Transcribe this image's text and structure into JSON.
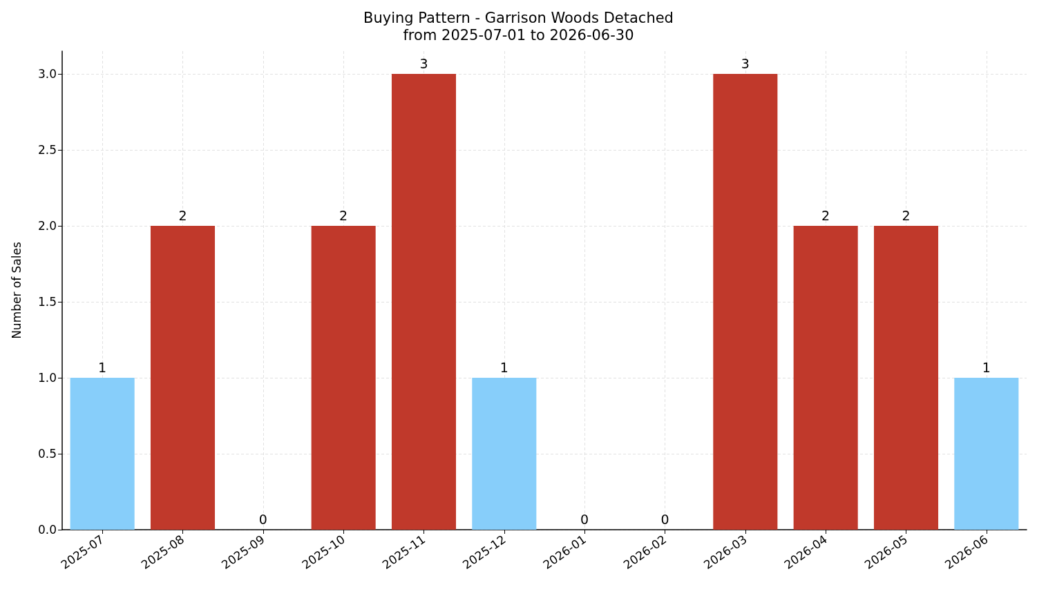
{
  "chart_data": {
    "type": "bar",
    "title": "Buying Pattern - Garrison Woods Detached",
    "subtitle": "from 2025-07-01 to 2026-06-30",
    "ylabel": "Number of Sales",
    "categories": [
      "2025-07",
      "2025-08",
      "2025-09",
      "2025-10",
      "2025-11",
      "2025-12",
      "2026-01",
      "2026-02",
      "2026-03",
      "2026-04",
      "2026-05",
      "2026-06"
    ],
    "values": [
      1,
      2,
      0,
      2,
      3,
      1,
      0,
      0,
      3,
      2,
      2,
      1
    ],
    "colors": [
      "#87cefa",
      "#c0392b",
      "#c0392b",
      "#c0392b",
      "#c0392b",
      "#87cefa",
      "#87cefa",
      "#87cefa",
      "#c0392b",
      "#c0392b",
      "#c0392b",
      "#87cefa"
    ],
    "ylim": [
      0,
      3.15
    ],
    "yticks": [
      {
        "value": 0,
        "label": "0.0"
      },
      {
        "value": 0.5,
        "label": "0.5"
      },
      {
        "value": 1,
        "label": "1.0"
      },
      {
        "value": 1.5,
        "label": "1.5"
      },
      {
        "value": 2,
        "label": "2.0"
      },
      {
        "value": 2.5,
        "label": "2.5"
      },
      {
        "value": 3,
        "label": "3.0"
      }
    ],
    "grid": true,
    "data_labels": true
  }
}
